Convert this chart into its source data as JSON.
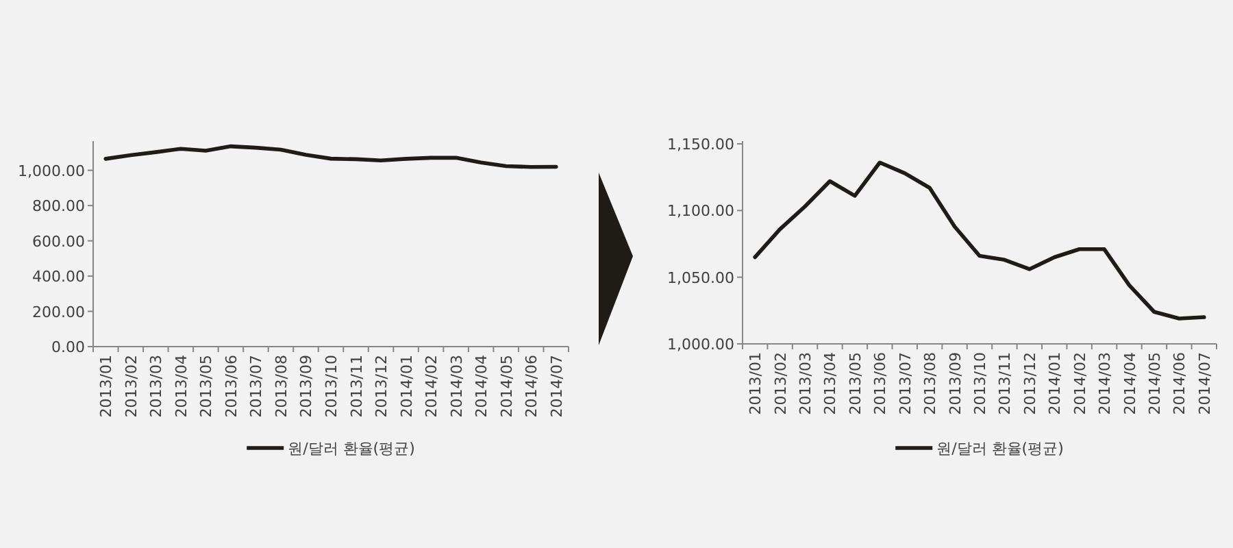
{
  "chart_data": [
    {
      "type": "line",
      "categories": [
        "2013/01",
        "2013/02",
        "2013/03",
        "2013/04",
        "2013/05",
        "2013/06",
        "2013/07",
        "2013/08",
        "2013/09",
        "2013/10",
        "2013/11",
        "2013/12",
        "2014/01",
        "2014/02",
        "2014/03",
        "2014/04",
        "2014/05",
        "2014/06",
        "2014/07"
      ],
      "series": [
        {
          "name": "원/달러 환율(평균)",
          "color": "#1f1c17",
          "values": [
            1065,
            1086,
            1103,
            1122,
            1111,
            1136,
            1128,
            1117,
            1088,
            1066,
            1063,
            1056,
            1065,
            1071,
            1071,
            1044,
            1024,
            1019,
            1020
          ]
        }
      ],
      "ylim": [
        0,
        1150
      ],
      "yticks": [
        {
          "value": 0,
          "label": "0.00"
        },
        {
          "value": 200,
          "label": "200.00"
        },
        {
          "value": 400,
          "label": "400.00"
        },
        {
          "value": 600,
          "label": "600.00"
        },
        {
          "value": 800,
          "label": "800.00"
        },
        {
          "value": 1000,
          "label": "1,000.00"
        }
      ],
      "grid": false,
      "legend": "bottom",
      "marker": "none",
      "line_style": "solid"
    },
    {
      "type": "line",
      "categories": [
        "2013/01",
        "2013/02",
        "2013/03",
        "2013/04",
        "2013/05",
        "2013/06",
        "2013/07",
        "2013/08",
        "2013/09",
        "2013/10",
        "2013/11",
        "2013/12",
        "2014/01",
        "2014/02",
        "2014/03",
        "2014/04",
        "2014/05",
        "2014/06",
        "2014/07"
      ],
      "series": [
        {
          "name": "원/달러 환율(평균)",
          "color": "#1f1c17",
          "values": [
            1065,
            1086,
            1103,
            1122,
            1111,
            1136,
            1128,
            1117,
            1088,
            1066,
            1063,
            1056,
            1065,
            1071,
            1071,
            1044,
            1024,
            1019,
            1020
          ]
        }
      ],
      "ylim": [
        1000,
        1150
      ],
      "yticks": [
        {
          "value": 1000,
          "label": "1,000.00"
        },
        {
          "value": 1050,
          "label": "1,050.00"
        },
        {
          "value": 1100,
          "label": "1,100.00"
        },
        {
          "value": 1150,
          "label": "1,150.00"
        }
      ],
      "grid": false,
      "legend": "bottom",
      "marker": "none",
      "line_style": "solid"
    }
  ]
}
